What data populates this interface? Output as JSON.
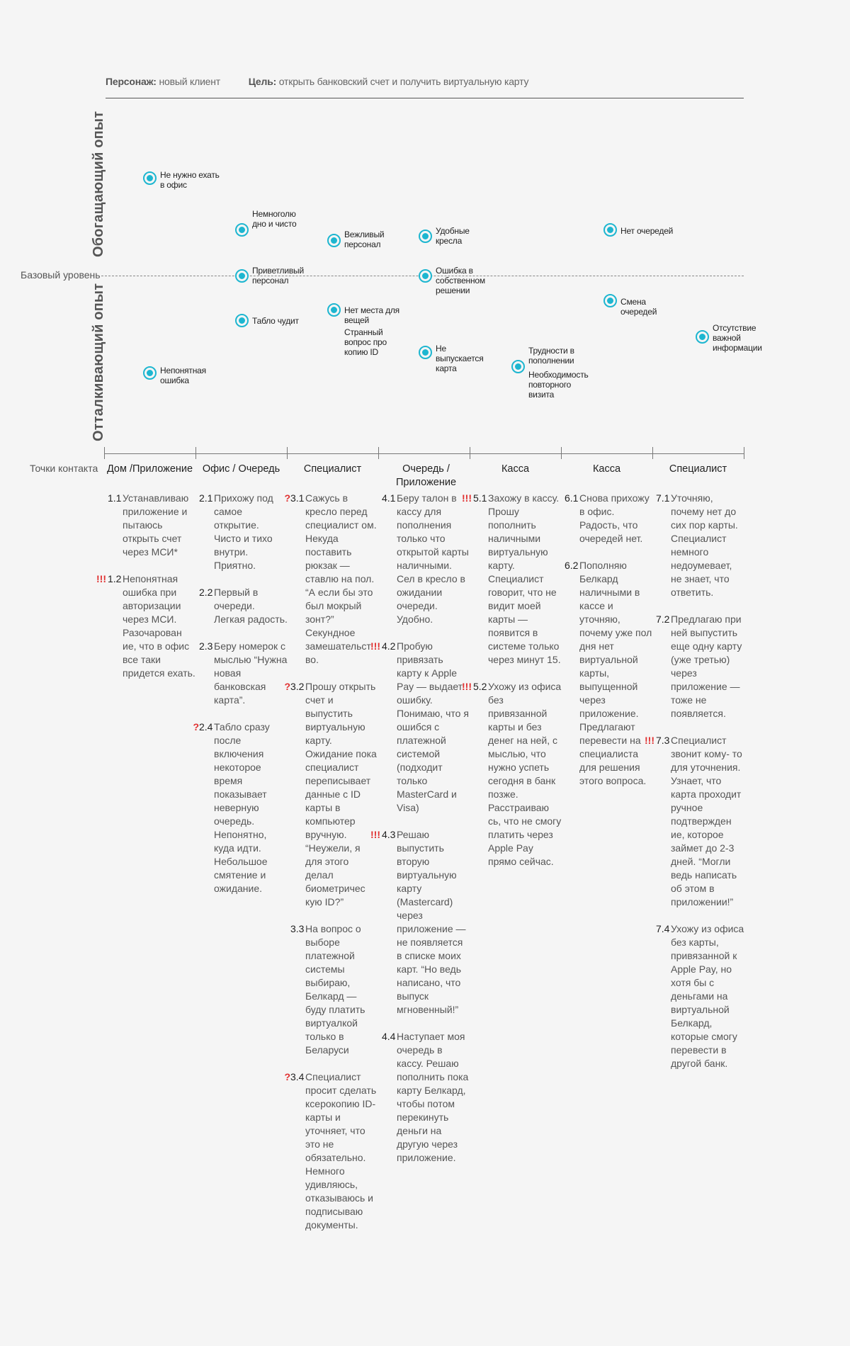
{
  "header": {
    "persona_label": "Персонаж:",
    "persona_value": "новый клиент",
    "goal_label": "Цель:",
    "goal_value": "открыть банковский счет и получить виртуальную карту"
  },
  "axis": {
    "positive": "Обогащающий опыт",
    "negative": "Отталкивающий опыт",
    "baseline": "Базовый уровень"
  },
  "points": [
    {
      "label": "Не нужно ехать в офис"
    },
    {
      "label": "Непонятная ошибка"
    },
    {
      "label": "Немноголю дно и чисто"
    },
    {
      "label": "Приветливый персонал"
    },
    {
      "label": "Табло чудит"
    },
    {
      "label": "Вежливый персонал"
    },
    {
      "label": "Нет места для вещей"
    },
    {
      "label": "Странный вопрос про копию ID"
    },
    {
      "label": "Удобные кресла"
    },
    {
      "label": "Ошибка в собственном решении"
    },
    {
      "label": "Не выпускается карта"
    },
    {
      "label": "Трудности в пополнении"
    },
    {
      "label": "Необходимость повторного визита"
    },
    {
      "label": "Нет очередей"
    },
    {
      "label": "Смена очередей"
    },
    {
      "label": "Отсутствие важной информации"
    }
  ],
  "touchpoints_label": "Точки контакта",
  "columns": [
    {
      "title": "Дом /Приложение",
      "steps": [
        {
          "mark": "",
          "num": "1.1",
          "text": "Устанавливаю приложение и пытаюсь открыть счет через МСИ*"
        },
        {
          "mark": "!!!",
          "num": "1.2",
          "text": "Непонятная ошибка при авторизации через МСИ. Разочарован ие, что в офис все таки придется ехать."
        }
      ]
    },
    {
      "title": "Офис / Очередь",
      "steps": [
        {
          "mark": "",
          "num": "2.1",
          "text": "Прихожу под самое открытие. Чисто и тихо внутри. Приятно."
        },
        {
          "mark": "",
          "num": "2.2",
          "text": "Первый в очереди. Легкая радость."
        },
        {
          "mark": "",
          "num": "2.3",
          "text": "Беру номерок с мыслью “Нужна новая банковская карта”."
        },
        {
          "mark": "?",
          "num": "2.4",
          "text": "Табло сразу после включения некоторое время показывает неверную очередь. Непонятно, куда идти. Небольшое смятение и ожидание."
        }
      ]
    },
    {
      "title": "Специалист",
      "steps": [
        {
          "mark": "?",
          "num": "3.1",
          "text": "Сажусь в кресло перед специалист ом. Некуда поставить рюкзак — ставлю на пол. “А если бы это был мокрый зонт?” Секундное замешательст во."
        },
        {
          "mark": "?",
          "num": "3.2",
          "text": "Прошу открыть счет и выпустить виртуальную карту. Ожидание пока специалист переписывает данные с ID карты в компьютер вручную. “Неужели, я для этого делал биометричес кую ID?”"
        },
        {
          "mark": "",
          "num": "3.3",
          "text": "На вопрос о выборе платежной системы выбираю, Белкард — буду платить виртуалкой только в Беларуси"
        },
        {
          "mark": "?",
          "num": "3.4",
          "text": "Специалист просит сделать ксерокопию ID-карты и уточняет, что это не обязательно. Немного удивляюсь, отказываюсь и подписываю документы."
        }
      ]
    },
    {
      "title": "Очередь / Приложение",
      "steps": [
        {
          "mark": "",
          "num": "4.1",
          "text": "Беру талон в кассу для пополнения только что открытой карты наличными. Сел в кресло в ожидании очереди. Удобно."
        },
        {
          "mark": "!!!",
          "num": "4.2",
          "text": "Пробую привязать карту к Apple Pay — выдает ошибку. Понимаю, что я ошибся с платежной системой (подходит только MasterCard и Visa)"
        },
        {
          "mark": "!!!",
          "num": "4.3",
          "text": "Решаю выпустить вторую виртуальную карту (Mastercard) через приложение — не появляется в списке моих карт. “Но ведь написано, что выпуск мгновенный!”"
        },
        {
          "mark": "",
          "num": "4.4",
          "text": "Наступает моя очередь в кассу. Решаю пополнить пока карту Белкард, чтобы потом перекинуть деньги на другую через приложение."
        }
      ]
    },
    {
      "title": "Касса",
      "steps": [
        {
          "mark": "!!!",
          "num": "5.1",
          "text": "Захожу в кассу. Прошу пополнить наличными виртуальную карту. Специалист говорит, что не видит моей карты — появится в системе только через минут 15."
        },
        {
          "mark": "!!!",
          "num": "5.2",
          "text": "Ухожу из офиса без привязанной карты и без денег на ней, с мыслью, что нужно успеть сегодня в банк позже. Расстраиваю сь, что не смогу платить через Apple Pay прямо сейчас."
        }
      ]
    },
    {
      "title": "Касса",
      "steps": [
        {
          "mark": "",
          "num": "6.1",
          "text": "Снова прихожу в офис. Радость, что очередей нет."
        },
        {
          "mark": "",
          "num": "6.2",
          "text": "Пополняю Белкард наличными в кассе и уточняю, почему уже пол дня нет виртуальной карты, выпущенной через приложение. Предлагают перевести на специалиста для решения этого вопроса."
        }
      ]
    },
    {
      "title": "Специалист",
      "steps": [
        {
          "mark": "",
          "num": "7.1",
          "text": "Уточняю, почему нет до сих пор карты. Специалист немного недоумевает, не знает, что ответить."
        },
        {
          "mark": "",
          "num": "7.2",
          "text": "Предлагаю при ней выпустить еще одну карту (уже третью) через приложение — тоже не появляется."
        },
        {
          "mark": "!!!",
          "num": "7.3",
          "text": "Специалист звонит кому- то для уточнения. Узнает, что карта проходит ручное подтвержден ие, которое займет до 2-3 дней. “Могли ведь написать об этом в приложении!”"
        },
        {
          "mark": "",
          "num": "7.4",
          "text": "Ухожу из офиса без карты, привязанной к Apple Pay, но хотя бы с деньгами на виртуальной Белкард, которые смогу перевести в другой банк."
        }
      ]
    }
  ]
}
